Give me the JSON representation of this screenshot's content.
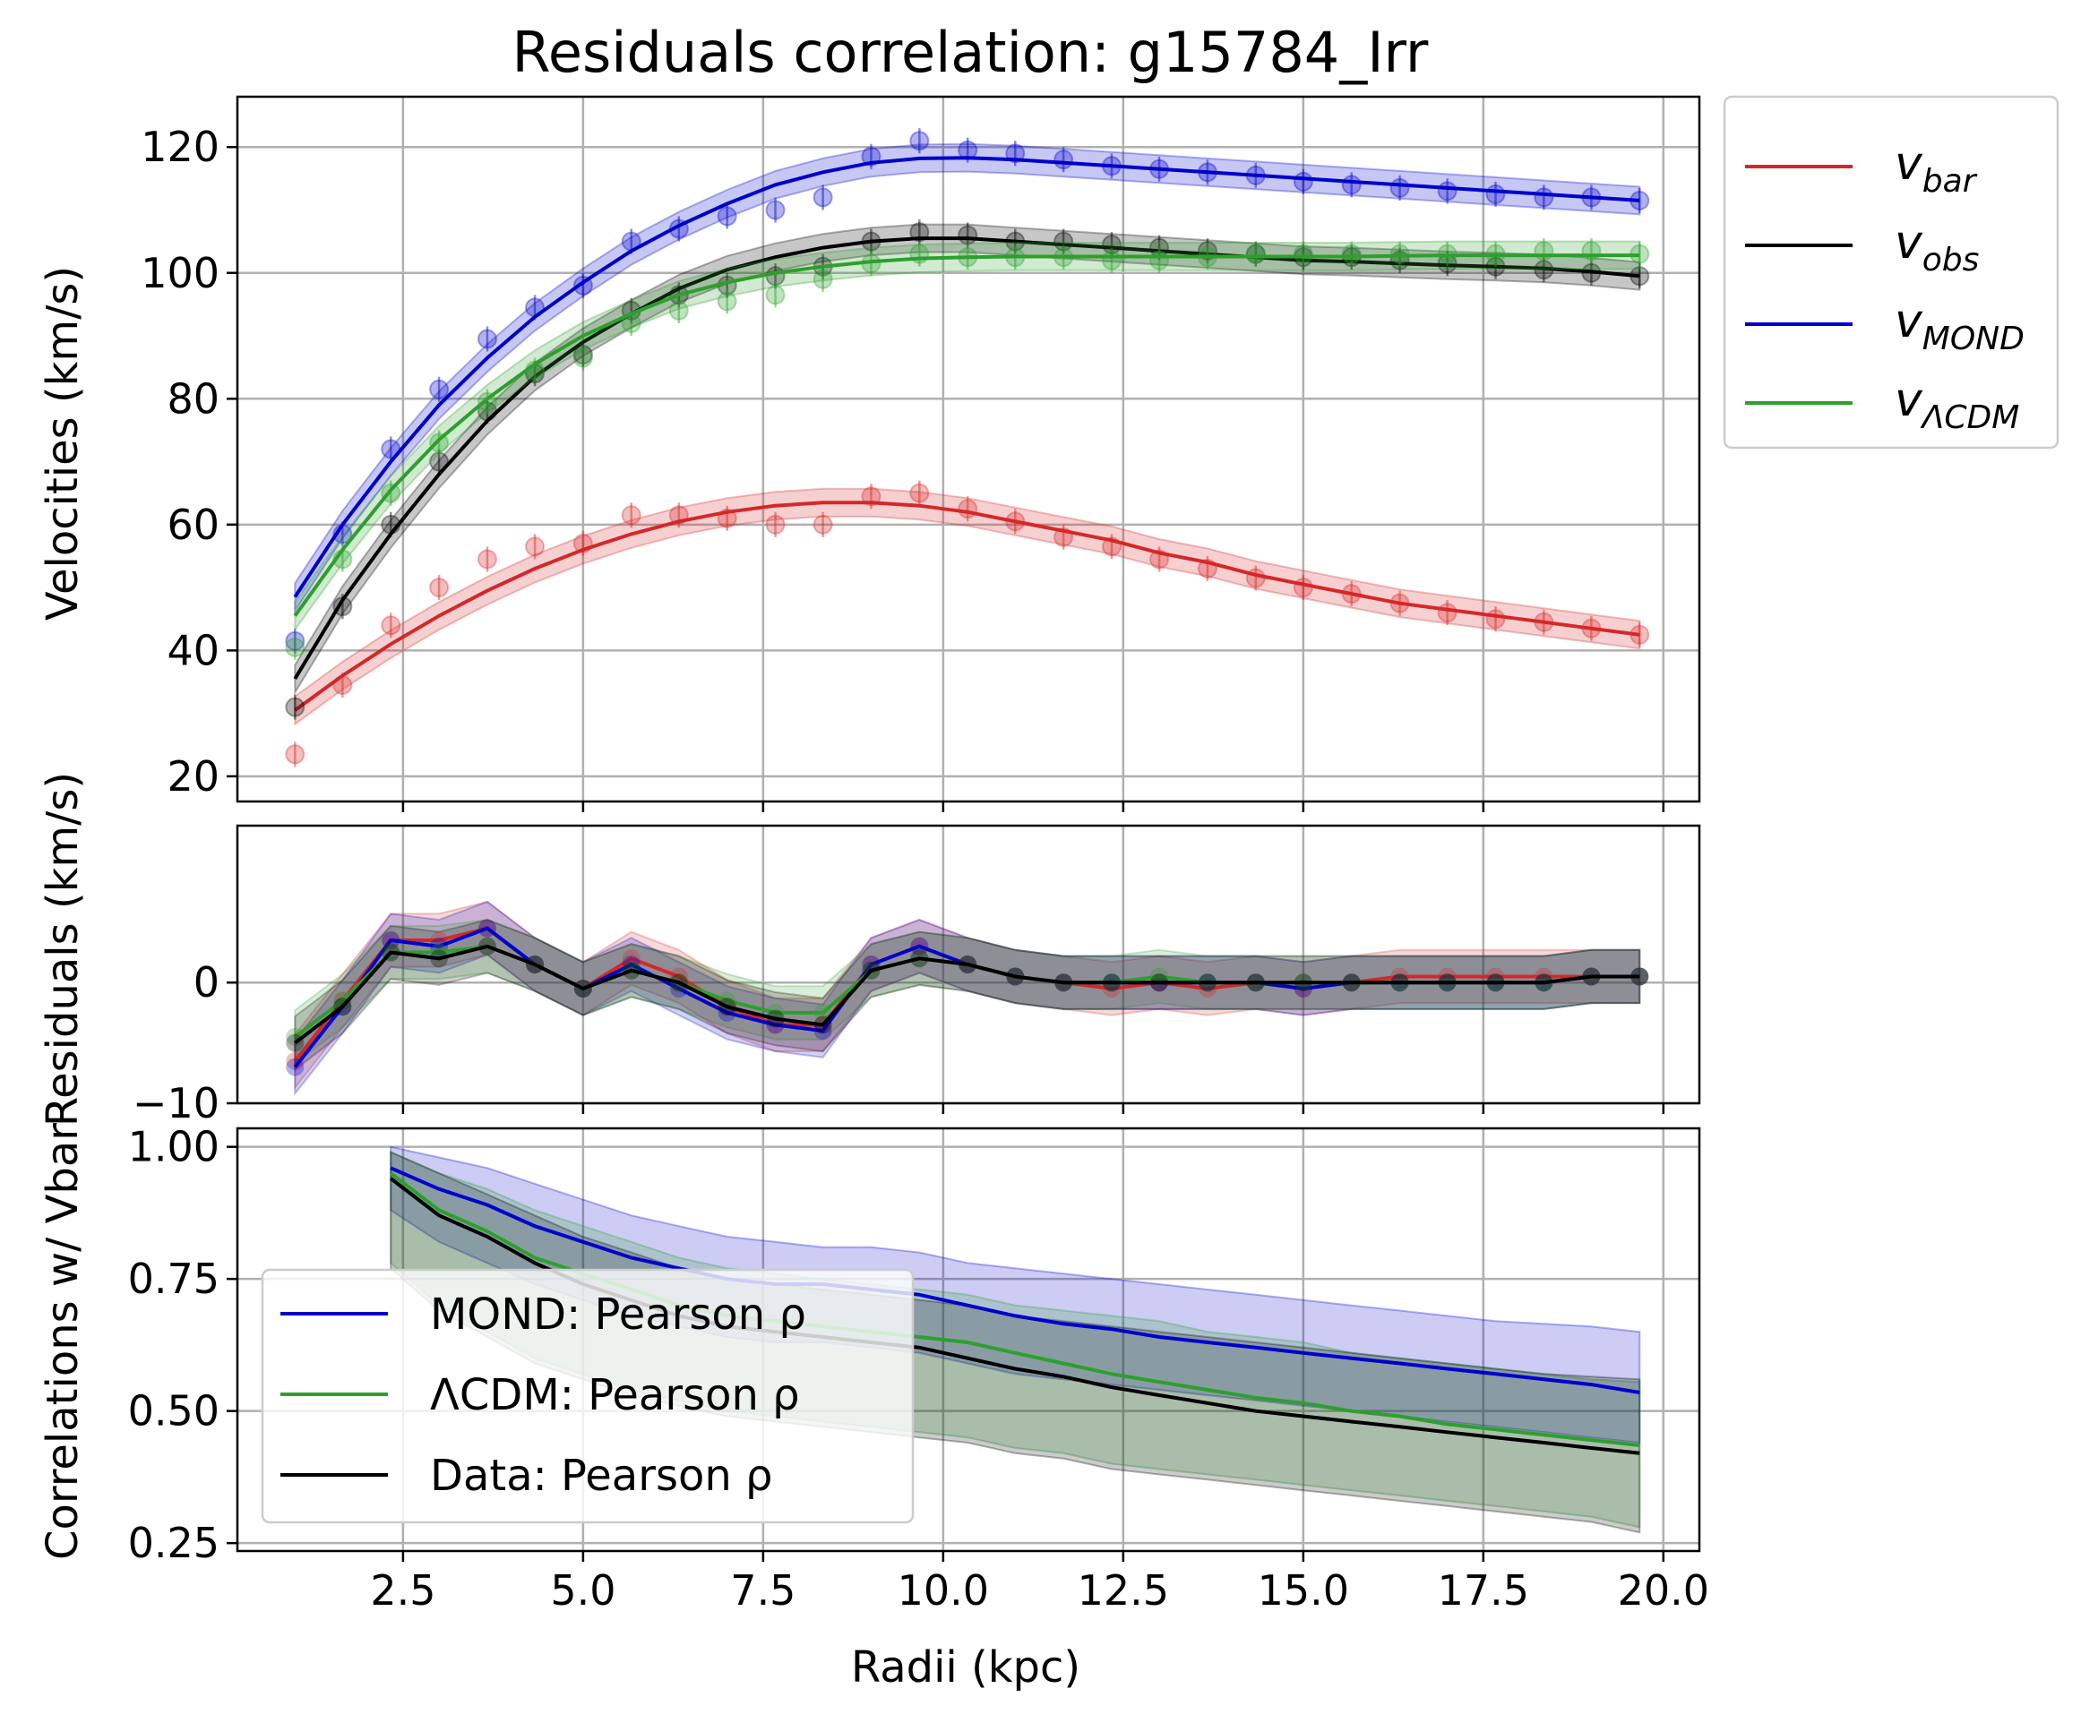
{
  "chart_data": [
    {
      "type": "line",
      "panel": "velocities",
      "title": "Residuals correlation: g15784_Irr",
      "ylabel": "Velocities (km/s)",
      "ylim": [
        16,
        128
      ],
      "yticks": [
        20,
        40,
        60,
        80,
        100,
        120
      ],
      "xlim": [
        0.2,
        20.5
      ],
      "grid": true,
      "legend_position": "outside-right",
      "x": [
        1.0,
        1.66,
        2.33,
        3.0,
        3.67,
        4.33,
        5.0,
        5.67,
        6.33,
        7.0,
        7.67,
        8.33,
        9.0,
        9.67,
        10.34,
        11.0,
        11.67,
        12.34,
        13.0,
        13.67,
        14.34,
        15.0,
        15.67,
        16.34,
        17.0,
        17.67,
        18.34,
        19.0,
        19.67
      ],
      "series": [
        {
          "name": "v_bar",
          "label_base": "v",
          "label_sub": "bar",
          "color": "#d62728",
          "points": [
            23.5,
            34.5,
            44.0,
            50.0,
            54.5,
            56.5,
            57.0,
            61.5,
            61.5,
            61.0,
            60.0,
            60.0,
            64.5,
            65.0,
            62.5,
            60.5,
            58.0,
            56.5,
            54.5,
            53.0,
            51.5,
            50.0,
            49.0,
            47.5,
            46.0,
            45.0,
            44.5,
            43.5,
            42.5
          ],
          "fit": [
            30.5,
            36.0,
            41.0,
            45.5,
            49.5,
            53.0,
            56.0,
            58.5,
            60.5,
            62.0,
            63.0,
            63.5,
            63.5,
            63.0,
            62.0,
            60.5,
            59.0,
            57.5,
            55.5,
            54.0,
            52.0,
            50.5,
            49.0,
            47.5,
            46.5,
            45.5,
            44.5,
            43.5,
            42.5
          ]
        },
        {
          "name": "v_obs",
          "label_base": "v",
          "label_sub": "obs",
          "color": "#000000",
          "points": [
            31.0,
            47.0,
            60.0,
            70.0,
            78.0,
            84.0,
            87.0,
            94.0,
            96.5,
            98.0,
            99.5,
            101.0,
            105.0,
            106.5,
            106.0,
            105.0,
            105.0,
            104.5,
            104.0,
            103.5,
            103.0,
            102.5,
            102.5,
            102.0,
            101.5,
            101.0,
            100.5,
            100.0,
            99.5
          ],
          "fit": [
            35.5,
            48.0,
            58.5,
            68.0,
            76.5,
            83.5,
            89.0,
            93.5,
            97.5,
            100.5,
            102.5,
            104.0,
            105.0,
            105.5,
            105.5,
            105.0,
            104.5,
            104.0,
            103.5,
            103.0,
            102.5,
            102.0,
            101.8,
            101.5,
            101.2,
            101.0,
            100.7,
            100.2,
            99.5
          ]
        },
        {
          "name": "v_MOND",
          "label_base": "v",
          "label_sub": "MOND",
          "color": "#0000cc",
          "points": [
            41.5,
            58.5,
            72.0,
            81.5,
            89.5,
            94.5,
            98.0,
            105.0,
            107.0,
            109.0,
            110.0,
            112.0,
            118.5,
            121.0,
            119.5,
            119.0,
            118.0,
            117.0,
            116.5,
            116.0,
            115.5,
            114.5,
            114.0,
            113.5,
            113.0,
            112.5,
            112.0,
            112.0,
            111.5
          ],
          "fit": [
            48.5,
            60.0,
            70.0,
            79.0,
            86.5,
            93.0,
            98.5,
            103.5,
            107.5,
            111.0,
            114.0,
            116.0,
            117.5,
            118.2,
            118.3,
            118.0,
            117.5,
            117.0,
            116.5,
            116.0,
            115.5,
            115.0,
            114.5,
            114.0,
            113.5,
            113.0,
            112.5,
            112.0,
            111.5
          ]
        },
        {
          "name": "v_ΛCDM",
          "label_base": "v",
          "label_sub": "ΛCDM",
          "color": "#2ca02c",
          "points": [
            40.5,
            54.5,
            65.0,
            73.0,
            79.5,
            84.5,
            86.5,
            92.0,
            94.0,
            95.5,
            96.5,
            99.0,
            101.5,
            103.0,
            102.5,
            102.5,
            102.5,
            102.0,
            102.0,
            102.5,
            103.0,
            103.0,
            103.0,
            103.0,
            103.0,
            103.0,
            103.5,
            103.5,
            103.0
          ],
          "fit": [
            45.5,
            56.0,
            65.5,
            73.5,
            80.0,
            85.5,
            90.0,
            93.5,
            96.5,
            98.5,
            100.0,
            101.0,
            101.8,
            102.3,
            102.5,
            102.6,
            102.6,
            102.6,
            102.6,
            102.6,
            102.6,
            102.6,
            102.6,
            102.7,
            102.8,
            102.8,
            102.8,
            102.8,
            102.8
          ]
        }
      ]
    },
    {
      "type": "line",
      "panel": "residuals",
      "ylabel": "Residuals (km/s)",
      "ylim": [
        -10,
        13
      ],
      "yticks": [
        -10,
        0
      ],
      "xlim": [
        0.2,
        20.5
      ],
      "grid": true,
      "x": [
        1.0,
        1.66,
        2.33,
        3.0,
        3.67,
        4.33,
        5.0,
        5.67,
        6.33,
        7.0,
        7.67,
        8.33,
        9.0,
        9.67,
        10.34,
        11.0,
        11.67,
        12.34,
        13.0,
        13.67,
        14.34,
        15.0,
        15.67,
        16.34,
        17.0,
        17.67,
        18.34,
        19.0,
        19.67
      ],
      "series": [
        {
          "name": "residual_bar",
          "color": "#d62728",
          "values": [
            -6.5,
            -1.5,
            3.5,
            3.5,
            4.5,
            1.5,
            -0.5,
            2.0,
            0.5,
            -2.0,
            -3.5,
            -3.5,
            1.5,
            3.0,
            1.5,
            0.5,
            0.0,
            -0.5,
            0.0,
            -0.5,
            0.0,
            -0.5,
            0.0,
            0.5,
            0.5,
            0.5,
            0.5,
            0.5,
            0.5
          ]
        },
        {
          "name": "residual_MOND",
          "color": "#0000cc",
          "values": [
            -7.0,
            -2.0,
            3.5,
            3.0,
            4.5,
            1.5,
            -0.5,
            1.5,
            -0.5,
            -2.5,
            -3.5,
            -4.0,
            1.5,
            3.0,
            1.5,
            0.5,
            0.0,
            0.0,
            0.0,
            0.0,
            0.0,
            -0.5,
            0.0,
            0.0,
            0.0,
            0.0,
            0.0,
            0.5,
            0.5
          ]
        },
        {
          "name": "residual_ΛCDM",
          "color": "#2ca02c",
          "values": [
            -4.5,
            -1.5,
            2.5,
            2.5,
            3.0,
            1.5,
            -0.5,
            1.0,
            0.0,
            -1.5,
            -2.5,
            -2.5,
            1.0,
            2.0,
            1.5,
            0.5,
            0.0,
            0.0,
            0.5,
            0.0,
            0.0,
            0.0,
            0.0,
            0.0,
            0.0,
            0.0,
            0.0,
            0.5,
            0.5
          ]
        },
        {
          "name": "residual_obs",
          "color": "#000000",
          "values": [
            -5.0,
            -2.0,
            2.5,
            2.0,
            3.0,
            1.5,
            -0.5,
            1.0,
            0.0,
            -2.0,
            -3.0,
            -3.5,
            1.0,
            2.0,
            1.5,
            0.5,
            0.0,
            0.0,
            0.0,
            0.0,
            0.0,
            0.0,
            0.0,
            0.0,
            0.0,
            0.0,
            0.0,
            0.5,
            0.5
          ]
        }
      ]
    },
    {
      "type": "line",
      "panel": "correlations",
      "ylabel": "Correlations w/ Vbar",
      "xlabel": "Radii (kpc)",
      "ylim": [
        0.235,
        1.035
      ],
      "yticks": [
        0.25,
        0.5,
        0.75,
        1.0
      ],
      "ytick_labels": [
        "0.25",
        "0.50",
        "0.75",
        "1.00"
      ],
      "xlim": [
        0.2,
        20.5
      ],
      "xticks": [
        2.5,
        5.0,
        7.5,
        10.0,
        12.5,
        15.0,
        17.5,
        20.0
      ],
      "xtick_labels": [
        "2.5",
        "5.0",
        "7.5",
        "10.0",
        "12.5",
        "15.0",
        "17.5",
        "20.0"
      ],
      "grid": true,
      "legend_position": "lower-left",
      "x": [
        2.33,
        3.0,
        3.67,
        4.33,
        5.0,
        5.67,
        6.33,
        7.0,
        7.67,
        8.33,
        9.0,
        9.67,
        10.34,
        11.0,
        11.67,
        12.34,
        13.0,
        13.67,
        14.34,
        15.0,
        15.67,
        16.34,
        17.0,
        17.67,
        18.34,
        19.0,
        19.67
      ],
      "series": [
        {
          "name": "MOND: Pearson ρ",
          "color": "#0000cc",
          "values": [
            0.96,
            0.92,
            0.89,
            0.85,
            0.82,
            0.79,
            0.77,
            0.75,
            0.74,
            0.74,
            0.73,
            0.72,
            0.7,
            0.68,
            0.665,
            0.655,
            0.64,
            0.63,
            0.62,
            0.61,
            0.6,
            0.59,
            0.58,
            0.57,
            0.56,
            0.55,
            0.535
          ],
          "band_upper": [
            1.0,
            0.98,
            0.96,
            0.93,
            0.9,
            0.87,
            0.85,
            0.83,
            0.82,
            0.81,
            0.81,
            0.8,
            0.78,
            0.77,
            0.76,
            0.75,
            0.74,
            0.73,
            0.72,
            0.71,
            0.7,
            0.69,
            0.68,
            0.67,
            0.665,
            0.66,
            0.65
          ],
          "band_lower": [
            0.88,
            0.82,
            0.78,
            0.74,
            0.71,
            0.68,
            0.66,
            0.64,
            0.63,
            0.63,
            0.62,
            0.61,
            0.59,
            0.57,
            0.56,
            0.55,
            0.54,
            0.53,
            0.52,
            0.51,
            0.5,
            0.49,
            0.48,
            0.47,
            0.46,
            0.45,
            0.44
          ]
        },
        {
          "name": "ΛCDM: Pearson ρ",
          "color": "#2ca02c",
          "values": [
            0.95,
            0.88,
            0.84,
            0.79,
            0.76,
            0.73,
            0.7,
            0.68,
            0.67,
            0.66,
            0.65,
            0.64,
            0.63,
            0.61,
            0.59,
            0.57,
            0.555,
            0.54,
            0.525,
            0.515,
            0.5,
            0.49,
            0.475,
            0.465,
            0.455,
            0.445,
            0.435
          ],
          "band_upper": [
            0.99,
            0.95,
            0.92,
            0.88,
            0.85,
            0.82,
            0.79,
            0.77,
            0.76,
            0.75,
            0.74,
            0.73,
            0.72,
            0.7,
            0.69,
            0.68,
            0.67,
            0.65,
            0.64,
            0.63,
            0.61,
            0.6,
            0.59,
            0.58,
            0.57,
            0.56,
            0.555
          ],
          "band_lower": [
            0.78,
            0.7,
            0.65,
            0.6,
            0.57,
            0.54,
            0.52,
            0.5,
            0.49,
            0.48,
            0.47,
            0.46,
            0.45,
            0.43,
            0.42,
            0.4,
            0.39,
            0.38,
            0.37,
            0.36,
            0.35,
            0.34,
            0.33,
            0.32,
            0.31,
            0.3,
            0.28
          ]
        },
        {
          "name": "Data: Pearson ρ",
          "color": "#000000",
          "values": [
            0.94,
            0.87,
            0.83,
            0.78,
            0.74,
            0.71,
            0.68,
            0.66,
            0.65,
            0.64,
            0.63,
            0.62,
            0.6,
            0.58,
            0.565,
            0.545,
            0.53,
            0.515,
            0.5,
            0.49,
            0.48,
            0.47,
            0.46,
            0.45,
            0.44,
            0.43,
            0.42
          ],
          "band_upper": [
            0.99,
            0.95,
            0.91,
            0.87,
            0.83,
            0.8,
            0.77,
            0.75,
            0.74,
            0.73,
            0.72,
            0.71,
            0.7,
            0.68,
            0.67,
            0.66,
            0.65,
            0.64,
            0.63,
            0.62,
            0.61,
            0.6,
            0.59,
            0.58,
            0.57,
            0.565,
            0.56
          ],
          "band_lower": [
            0.77,
            0.69,
            0.64,
            0.59,
            0.56,
            0.53,
            0.51,
            0.49,
            0.48,
            0.47,
            0.46,
            0.45,
            0.44,
            0.42,
            0.41,
            0.39,
            0.38,
            0.37,
            0.36,
            0.35,
            0.34,
            0.33,
            0.32,
            0.31,
            0.3,
            0.29,
            0.27
          ]
        }
      ]
    }
  ]
}
